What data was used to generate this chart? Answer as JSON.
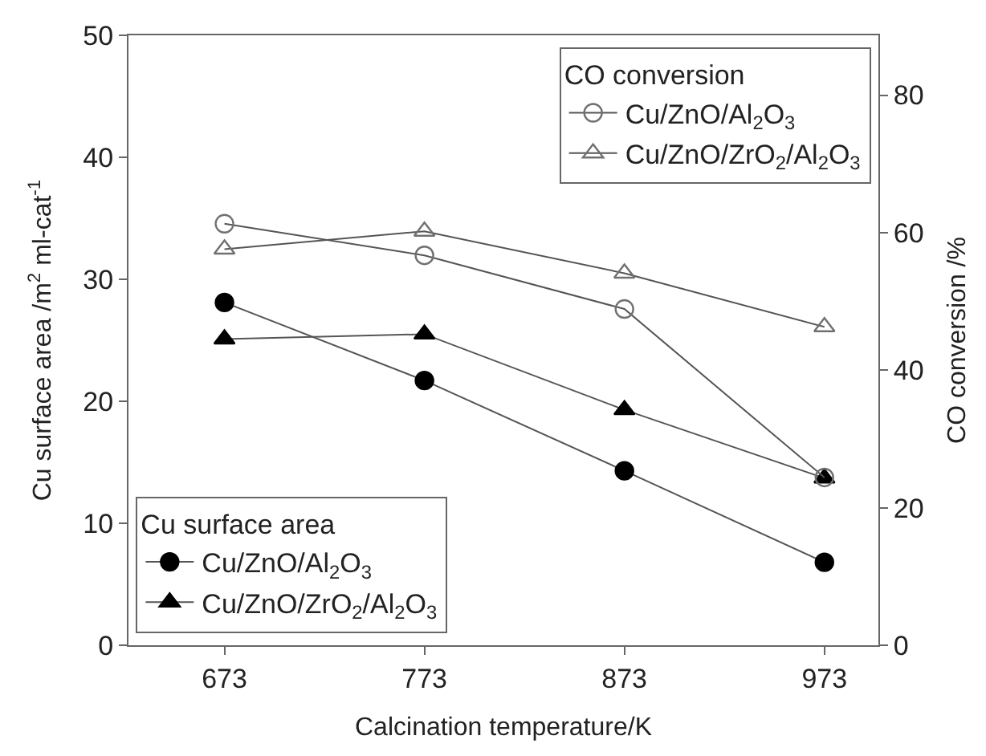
{
  "chart_data": {
    "type": "line",
    "xlabel": "Calcination temperature/K",
    "ylabel": "Cu surface area /m$^{2}$ ml-cat$^{-1}$",
    "y2label": "CO conversion /%",
    "x": [
      673,
      773,
      873,
      973
    ],
    "xlim": [
      625,
      1000
    ],
    "xticks": [
      673,
      773,
      873,
      973
    ],
    "ylim": [
      0,
      50
    ],
    "yticks": [
      0,
      10,
      20,
      30,
      40,
      50
    ],
    "y2lim": [
      0,
      88.7
    ],
    "y2ticks": [
      0,
      20,
      40,
      60,
      80
    ],
    "series": [
      {
        "name": "Cu/ZnO/Al$_{2}$O$_{3}$",
        "color": "#000000",
        "marker": "circle",
        "values": [
          28.1,
          21.7,
          14.3,
          6.8
        ]
      },
      {
        "name": "Cu/ZnO/ZrO$_{2}$/Al$_{2}$O$_{3}$",
        "color": "#000000",
        "marker": "triangle",
        "values": [
          25.1,
          25.5,
          19.3,
          13.7
        ]
      },
      {
        "name": "Cu/ZnO/Al$_{2}$O$_{3}$",
        "color": "#707070",
        "marker": "circle",
        "axis": "y2",
        "values": [
          61.3,
          56.7,
          48.9,
          24.4
        ]
      },
      {
        "name": "Cu/ZnO/ZrO$_{2}$/Al$_{2}$O$_{3}$",
        "color": "#707070",
        "marker": "triangle",
        "axis": "y2",
        "values": [
          57.6,
          60.2,
          54.1,
          46.3
        ]
      }
    ],
    "annotations": [
      "Cu surface area",
      "CO conversion"
    ],
    "legend": [
      "bottom left",
      "top right"
    ],
    "line_style": "solid"
  }
}
